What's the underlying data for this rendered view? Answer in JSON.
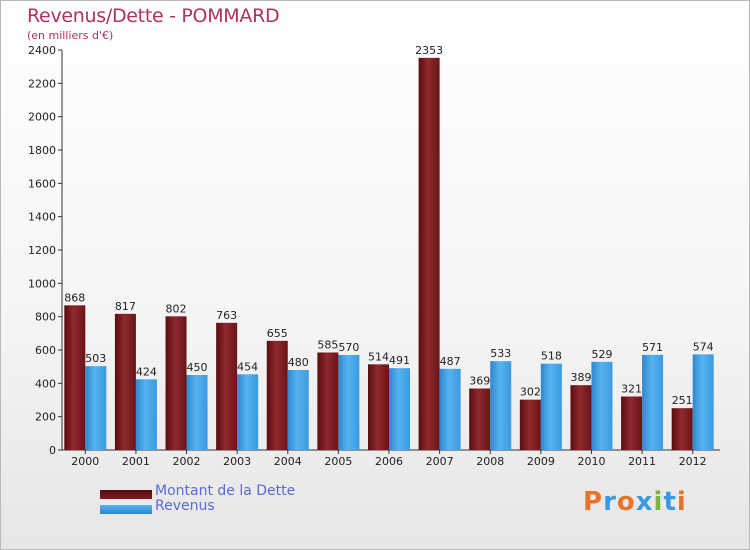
{
  "header": {
    "title": "Revenus/Dette - POMMARD",
    "subtitle": "(en milliers d'€)"
  },
  "legend": {
    "dette_label": "Montant de la Dette",
    "revenus_label": "Revenus"
  },
  "logo": {
    "text": "Proxiti"
  },
  "colors": {
    "dette": "#7a1a1f",
    "revenus": "#3a9ae0",
    "title": "#b03060",
    "legend_text": "#5c6ad6"
  },
  "chart_data": {
    "type": "bar",
    "title": "Revenus/Dette - POMMARD",
    "ylabel": "(en milliers d'€)",
    "xlabel": "",
    "categories": [
      "2000",
      "2001",
      "2002",
      "2003",
      "2004",
      "2005",
      "2006",
      "2007",
      "2008",
      "2009",
      "2010",
      "2011",
      "2012"
    ],
    "series": [
      {
        "name": "Montant de la Dette",
        "values": [
          868,
          817,
          802,
          763,
          655,
          585,
          514,
          2353,
          369,
          302,
          389,
          321,
          251
        ]
      },
      {
        "name": "Revenus",
        "values": [
          503,
          424,
          450,
          454,
          480,
          570,
          491,
          487,
          533,
          518,
          529,
          571,
          574
        ]
      }
    ],
    "ylim": [
      0,
      2400
    ],
    "yticks": [
      0,
      200,
      400,
      600,
      800,
      1000,
      1200,
      1400,
      1600,
      1800,
      2000,
      2200,
      2400
    ],
    "legend": "bottom-left"
  }
}
